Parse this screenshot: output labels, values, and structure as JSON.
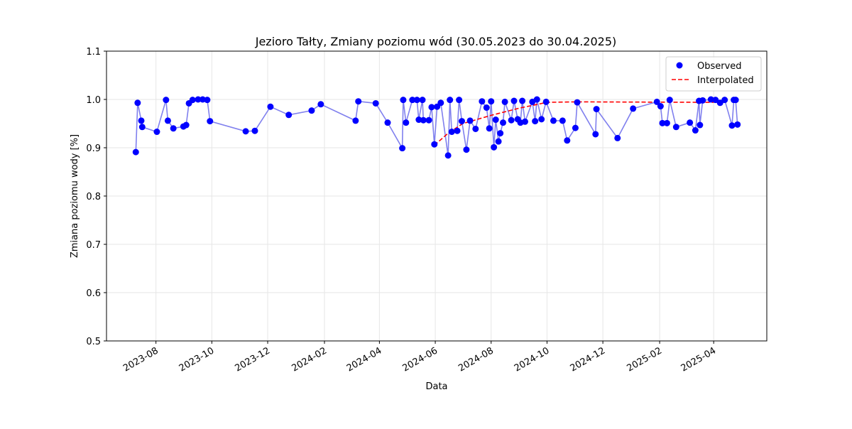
{
  "chart_data": {
    "type": "line",
    "title": "Jezioro Tałty, Zmiany poziomu wód (30.05.2023 do 30.04.2025)",
    "xlabel": "Data",
    "ylabel": "Zmiana poziomu wody [%]",
    "grid": true,
    "legend": "upper right",
    "xlim": [
      "2023-06-08",
      "2025-05-29"
    ],
    "ylim": [
      0.5,
      1.1
    ],
    "yticks": [
      0.5,
      0.6,
      0.7,
      0.8,
      0.9,
      {
        "value": 1,
        "label": "1.0"
      },
      1.1
    ],
    "xticks": [
      {
        "value": "2023-08-01",
        "label": "2023-08"
      },
      {
        "value": "2023-10-01",
        "label": "2023-10"
      },
      {
        "value": "2023-12-01",
        "label": "2023-12"
      },
      {
        "value": "2024-02-01",
        "label": "2024-02"
      },
      {
        "value": "2024-04-01",
        "label": "2024-04"
      },
      {
        "value": "2024-06-01",
        "label": "2024-06"
      },
      {
        "value": "2024-08-01",
        "label": "2024-08"
      },
      {
        "value": "2024-10-01",
        "label": "2024-10"
      },
      {
        "value": "2024-12-01",
        "label": "2024-12"
      },
      {
        "value": "2025-02-01",
        "label": "2025-02"
      },
      {
        "value": "2025-04-01",
        "label": "2025-04"
      }
    ],
    "series": [
      {
        "name": "Observed",
        "color": "#0000ff",
        "line_color": "#8080ee",
        "marker": true,
        "dashed": false,
        "x": [
          "2023-07-10",
          "2023-07-12",
          "2023-07-16",
          "2023-07-17",
          "2023-08-02",
          "2023-08-12",
          "2023-08-14",
          "2023-08-20",
          "2023-08-31",
          "2023-09-03",
          "2023-09-06",
          "2023-09-10",
          "2023-09-16",
          "2023-09-21",
          "2023-09-26",
          "2023-09-29",
          "2023-11-07",
          "2023-11-17",
          "2023-12-04",
          "2023-12-24",
          "2024-01-18",
          "2024-01-28",
          "2024-03-06",
          "2024-03-09",
          "2024-03-28",
          "2024-04-10",
          "2024-04-26",
          "2024-04-27",
          "2024-04-30",
          "2024-05-07",
          "2024-05-12",
          "2024-05-14",
          "2024-05-18",
          "2024-05-19",
          "2024-05-25",
          "2024-05-28",
          "2024-05-31",
          "2024-06-03",
          "2024-06-07",
          "2024-06-15",
          "2024-06-17",
          "2024-06-19",
          "2024-06-25",
          "2024-06-27",
          "2024-06-30",
          "2024-07-05",
          "2024-07-09",
          "2024-07-15",
          "2024-07-22",
          "2024-07-27",
          "2024-07-30",
          "2024-08-01",
          "2024-08-04",
          "2024-08-06",
          "2024-08-09",
          "2024-08-11",
          "2024-08-14",
          "2024-08-16",
          "2024-08-23",
          "2024-08-26",
          "2024-08-30",
          "2024-09-02",
          "2024-09-04",
          "2024-09-07",
          "2024-09-15",
          "2024-09-18",
          "2024-09-20",
          "2024-09-25",
          "2024-09-30",
          "2024-10-08",
          "2024-10-18",
          "2024-10-23",
          "2024-11-01",
          "2024-11-03",
          "2024-11-23",
          "2024-11-24",
          "2024-12-17",
          "2025-01-03",
          "2025-01-29",
          "2025-02-02",
          "2025-02-04",
          "2025-02-09",
          "2025-02-12",
          "2025-02-19",
          "2025-03-06",
          "2025-03-12",
          "2025-03-16",
          "2025-03-17",
          "2025-03-20",
          "2025-03-29",
          "2025-04-03",
          "2025-04-08",
          "2025-04-13",
          "2025-04-21",
          "2025-04-23",
          "2025-04-25",
          "2025-04-27"
        ],
        "values": [
          0.891,
          0.993,
          0.956,
          0.943,
          0.933,
          0.999,
          0.956,
          0.94,
          0.944,
          0.947,
          0.992,
          0.999,
          1.0,
          1.0,
          0.999,
          0.955,
          0.934,
          0.935,
          0.985,
          0.968,
          0.977,
          0.99,
          0.956,
          0.996,
          0.992,
          0.952,
          0.899,
          0.999,
          0.952,
          0.999,
          0.999,
          0.958,
          0.999,
          0.957,
          0.957,
          0.984,
          0.907,
          0.985,
          0.993,
          0.884,
          0.999,
          0.933,
          0.935,
          0.999,
          0.955,
          0.896,
          0.956,
          0.939,
          0.996,
          0.983,
          0.94,
          0.996,
          0.901,
          0.958,
          0.913,
          0.93,
          0.952,
          0.995,
          0.957,
          0.997,
          0.959,
          0.952,
          0.997,
          0.954,
          0.995,
          0.955,
          1.0,
          0.959,
          0.995,
          0.956,
          0.956,
          0.915,
          0.941,
          0.994,
          0.928,
          0.98,
          0.92,
          0.981,
          0.995,
          0.986,
          0.951,
          0.951,
          0.999,
          0.943,
          0.952,
          0.936,
          0.997,
          0.947,
          0.998,
          1.0,
          0.999,
          0.993,
          0.999,
          0.946,
          0.999,
          0.999,
          0.948
        ]
      },
      {
        "name": "Interpolated",
        "color": "#ff0000",
        "marker": false,
        "dashed": true,
        "x": [
          "2024-05-31",
          "2024-06-15",
          "2024-07-01",
          "2024-08-01",
          "2024-09-01",
          "2024-10-01",
          "2024-11-01",
          "2025-04-01"
        ],
        "values": [
          0.905,
          0.93,
          0.95,
          0.967,
          0.982,
          0.994,
          0.995,
          0.994
        ]
      }
    ]
  }
}
